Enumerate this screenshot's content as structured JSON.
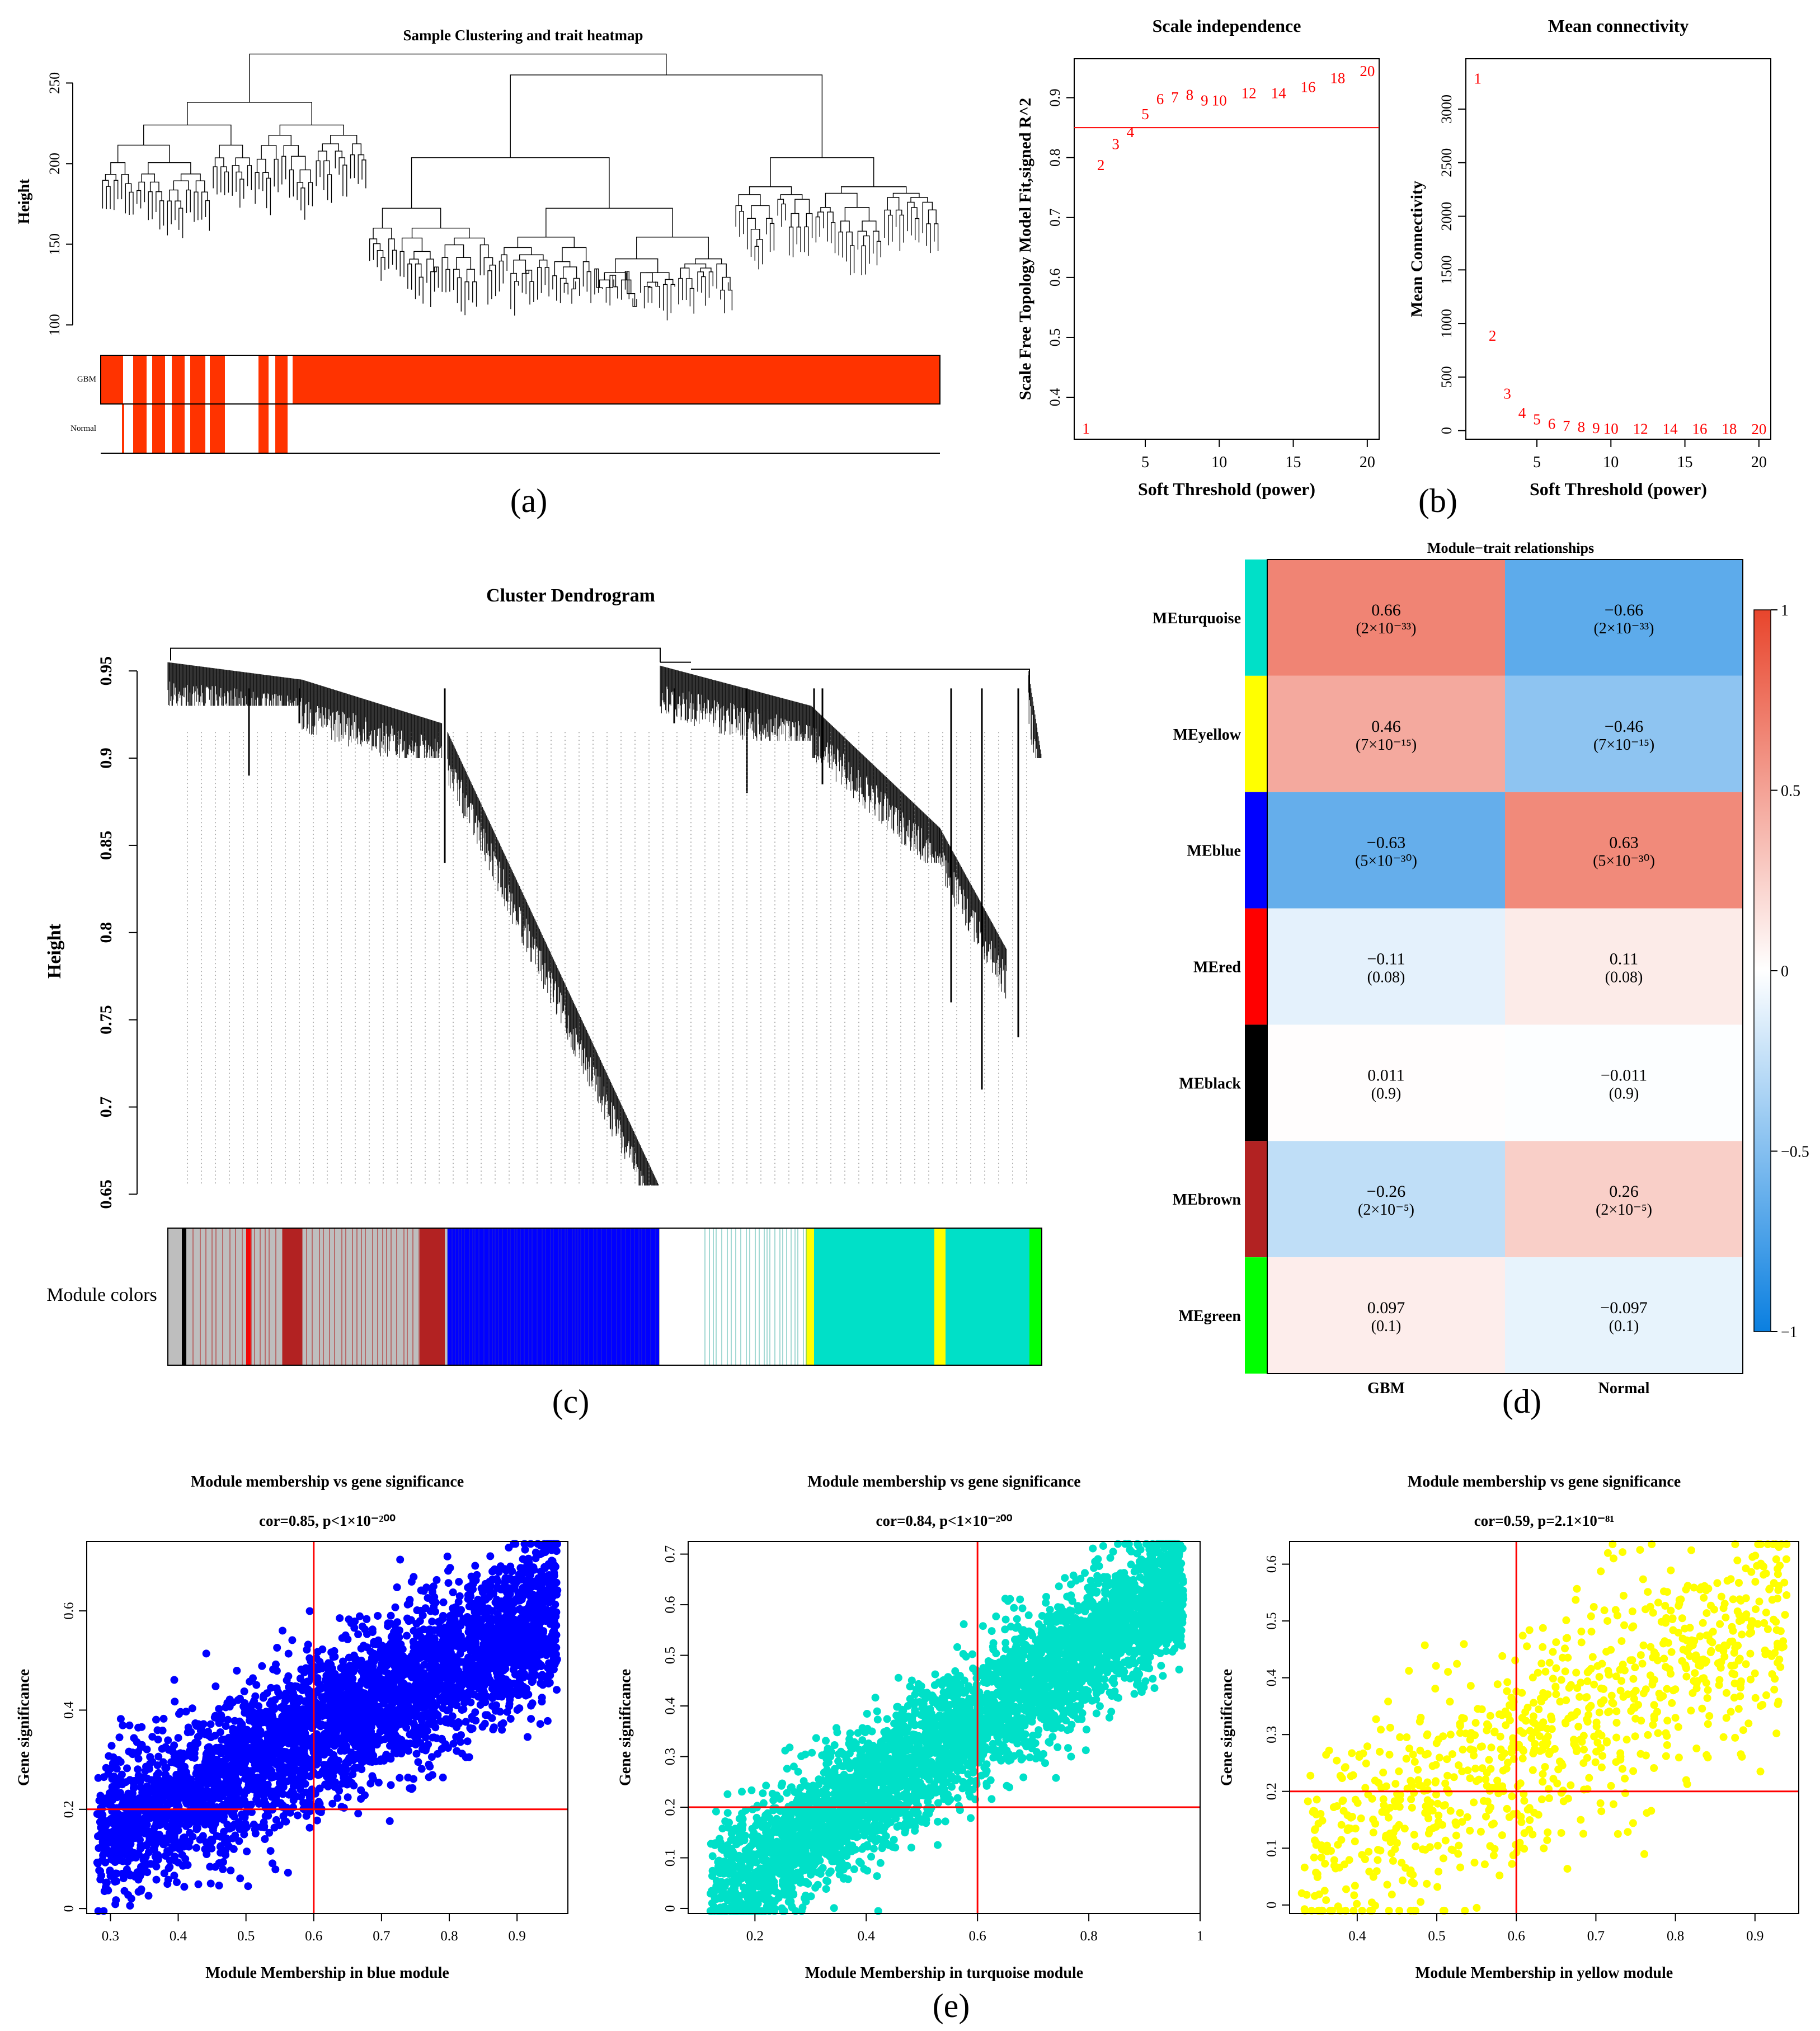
{
  "panel_labels": [
    "(a)",
    "(b)",
    "(c)",
    "(d)",
    "(e)"
  ],
  "chart_data": [
    {
      "id": "a",
      "type": "dendrogram",
      "title": "Sample Clustering and trait heatmap",
      "ylabel": "Height",
      "yticks": [
        100,
        150,
        200,
        250
      ],
      "ylim": [
        95,
        272
      ],
      "trait_rows": [
        "GBM",
        "Normal"
      ],
      "trait_colors": {
        "on": "#FF3300",
        "off": "#FFFFFF"
      },
      "n_samples": 220
    },
    {
      "id": "b1",
      "type": "scatter",
      "title": "Scale independence",
      "xlabel": "Soft Threshold (power)",
      "ylabel": "Scale Free Topology Model Fit,signed R^2",
      "xticks": [
        5,
        10,
        15,
        20
      ],
      "yticks": [
        0.4,
        0.5,
        0.6,
        0.7,
        0.8,
        0.9
      ],
      "xlim": [
        0.2,
        20.8
      ],
      "ylim": [
        0.33,
        0.965
      ],
      "hline": 0.85,
      "labels": [
        "1",
        "2",
        "3",
        "4",
        "5",
        "6",
        "7",
        "8",
        "9",
        "10",
        "12",
        "14",
        "16",
        "18",
        "20"
      ],
      "x": [
        1,
        2,
        3,
        4,
        5,
        6,
        7,
        8,
        9,
        10,
        12,
        14,
        16,
        18,
        20
      ],
      "y": [
        0.345,
        0.785,
        0.82,
        0.84,
        0.87,
        0.895,
        0.898,
        0.902,
        0.893,
        0.893,
        0.905,
        0.905,
        0.915,
        0.93,
        0.942
      ],
      "color": "#FF0000"
    },
    {
      "id": "b2",
      "type": "scatter",
      "title": "Mean connectivity",
      "xlabel": "Soft Threshold (power)",
      "ylabel": "Mean Connectivity",
      "xticks": [
        5,
        10,
        15,
        20
      ],
      "yticks": [
        0,
        500,
        1000,
        1500,
        2000,
        2500,
        3000
      ],
      "xlim": [
        0.2,
        20.8
      ],
      "ylim": [
        -80,
        3470
      ],
      "labels": [
        "1",
        "2",
        "3",
        "4",
        "5",
        "6",
        "7",
        "8",
        "9",
        "10",
        "12",
        "14",
        "16",
        "18",
        "20"
      ],
      "x": [
        1,
        2,
        3,
        4,
        5,
        6,
        7,
        8,
        9,
        10,
        12,
        14,
        16,
        18,
        20
      ],
      "y": [
        3270,
        870,
        330,
        150,
        90,
        50,
        30,
        20,
        10,
        5,
        3,
        2,
        1,
        1,
        0
      ],
      "color": "#FF0000"
    },
    {
      "id": "c",
      "type": "dendrogram",
      "title": "Cluster Dendrogram",
      "ylabel": "Height",
      "yticks": [
        0.65,
        0.7,
        0.75,
        0.8,
        0.85,
        0.9,
        0.95
      ],
      "ylim": [
        0.645,
        0.977
      ],
      "color_bar_label": "Module colors",
      "module_colors": {
        "grey": "#BEBEBE",
        "black": "#000000",
        "brown": "#B22222",
        "red": "#FF0000",
        "blue": "#0000FF",
        "turquoise": "#00E0C8",
        "yellow": "#FFFF00",
        "green": "#00FF00"
      }
    },
    {
      "id": "d",
      "type": "heatmap",
      "title": "Module−trait relationships",
      "rows": [
        "MEturquoise",
        "MEyellow",
        "MEblue",
        "MEred",
        "MEblack",
        "MEbrown",
        "MEgreen"
      ],
      "row_colors": [
        "#00E0C8",
        "#FFFF00",
        "#0000FF",
        "#FF0000",
        "#000000",
        "#B22222",
        "#00FF00"
      ],
      "columns": [
        "GBM",
        "Normal"
      ],
      "values": [
        [
          0.66,
          -0.66
        ],
        [
          0.46,
          -0.46
        ],
        [
          -0.63,
          0.63
        ],
        [
          -0.11,
          0.11
        ],
        [
          0.011,
          -0.011
        ],
        [
          -0.26,
          0.26
        ],
        [
          0.097,
          -0.097
        ]
      ],
      "cell_text": [
        [
          [
            "0.66",
            "(2×10⁻³³)"
          ],
          [
            "−0.66",
            "(2×10⁻³³)"
          ]
        ],
        [
          [
            "0.46",
            "(7×10⁻¹⁵)"
          ],
          [
            "−0.46",
            "(7×10⁻¹⁵)"
          ]
        ],
        [
          [
            "−0.63",
            "(5×10⁻³⁰)"
          ],
          [
            "0.63",
            "(5×10⁻³⁰)"
          ]
        ],
        [
          [
            "−0.11",
            "(0.08)"
          ],
          [
            "0.11",
            "(0.08)"
          ]
        ],
        [
          [
            "0.011",
            "(0.9)"
          ],
          [
            "−0.011",
            "(0.9)"
          ]
        ],
        [
          [
            "−0.26",
            "(2×10⁻⁵)"
          ],
          [
            "0.26",
            "(2×10⁻⁵)"
          ]
        ],
        [
          [
            "0.097",
            "(0.1)"
          ],
          [
            "−0.097",
            "(0.1)"
          ]
        ]
      ],
      "colorbar_ticks": [
        "1",
        "0.5",
        "0",
        "−0.5",
        "−1"
      ],
      "colorbar_values": [
        1,
        0.5,
        0,
        -0.5,
        -1
      ],
      "colors": {
        "neg": "#0A7FE0",
        "mid": "#FFFFFF",
        "pos": "#E8452C"
      }
    },
    {
      "id": "e1",
      "type": "scatter",
      "title": "Module membership vs gene significance",
      "subtitle": "cor=0.85, p<1×10⁻²⁰⁰",
      "xlabel": "Module Membership in blue module",
      "ylabel": "Gene significance",
      "xticks": [
        0.3,
        0.4,
        0.5,
        0.6,
        0.7,
        0.8,
        0.9
      ],
      "yticks": [
        0.0,
        0.2,
        0.4,
        0.6
      ],
      "xlim": [
        0.265,
        0.975
      ],
      "ylim": [
        -0.01,
        0.74
      ],
      "vline": 0.6,
      "hline": 0.2,
      "color": "#0000FF",
      "n_points": 4200,
      "trend": {
        "slope": 0.68,
        "intercept": -0.055,
        "sd": 0.075,
        "x_range": [
          0.28,
          0.96
        ]
      }
    },
    {
      "id": "e2",
      "type": "scatter",
      "title": "Module membership vs gene significance",
      "subtitle": "cor=0.84, p<1×10⁻²⁰⁰",
      "xlabel": "Module Membership in turquoise module",
      "ylabel": "Gene significance",
      "xticks": [
        0.2,
        0.4,
        0.6,
        0.8,
        1.0
      ],
      "yticks": [
        0.0,
        0.1,
        0.2,
        0.3,
        0.4,
        0.5,
        0.6,
        0.7
      ],
      "xlim": [
        0.08,
        1.0
      ],
      "ylim": [
        -0.01,
        0.725
      ],
      "vline": 0.6,
      "hline": 0.2,
      "color": "#00E0C8",
      "n_points": 4200,
      "trend": {
        "slope": 0.72,
        "intercept": -0.06,
        "sd": 0.065,
        "x_range": [
          0.12,
          0.97
        ]
      }
    },
    {
      "id": "e3",
      "type": "scatter",
      "title": "Module membership vs gene significance",
      "subtitle": "cor=0.59, p=2.1×10⁻⁸¹",
      "xlabel": "Module Membership in yellow module",
      "ylabel": "Gene significance",
      "xticks": [
        0.4,
        0.5,
        0.6,
        0.7,
        0.8,
        0.9
      ],
      "yticks": [
        0.0,
        0.1,
        0.2,
        0.3,
        0.4,
        0.5,
        0.6
      ],
      "xlim": [
        0.315,
        0.955
      ],
      "ylim": [
        -0.015,
        0.64
      ],
      "vline": 0.6,
      "hline": 0.2,
      "color": "#FFFF00",
      "n_points": 900,
      "trend": {
        "slope": 0.75,
        "intercept": -0.18,
        "sd": 0.1,
        "x_range": [
          0.33,
          0.94
        ]
      }
    }
  ]
}
